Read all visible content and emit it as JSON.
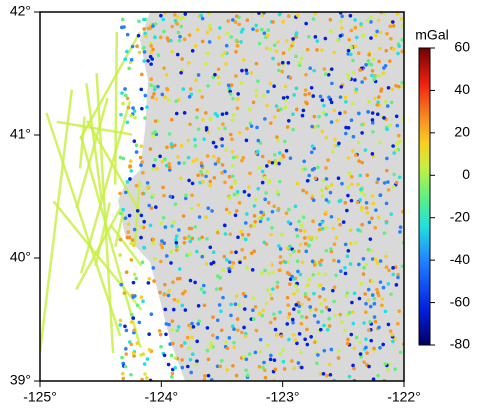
{
  "map": {
    "xlim": [
      -125,
      -122
    ],
    "ylim": [
      39,
      42
    ],
    "xticks": [
      {
        "value": -125,
        "label": "-125°"
      },
      {
        "value": -124,
        "label": "-124°"
      },
      {
        "value": -123,
        "label": "-123°"
      },
      {
        "value": -122,
        "label": "-122°"
      }
    ],
    "yticks": [
      {
        "value": 39,
        "label": "39°"
      },
      {
        "value": 40,
        "label": "40°"
      },
      {
        "value": 41,
        "label": "41°"
      },
      {
        "value": 42,
        "label": "42°"
      }
    ],
    "colorbar": {
      "label": "mGal",
      "lim": [
        -80,
        60
      ],
      "ticks": [
        -80,
        -60,
        -40,
        -20,
        0,
        20,
        40,
        60
      ]
    }
  }
}
